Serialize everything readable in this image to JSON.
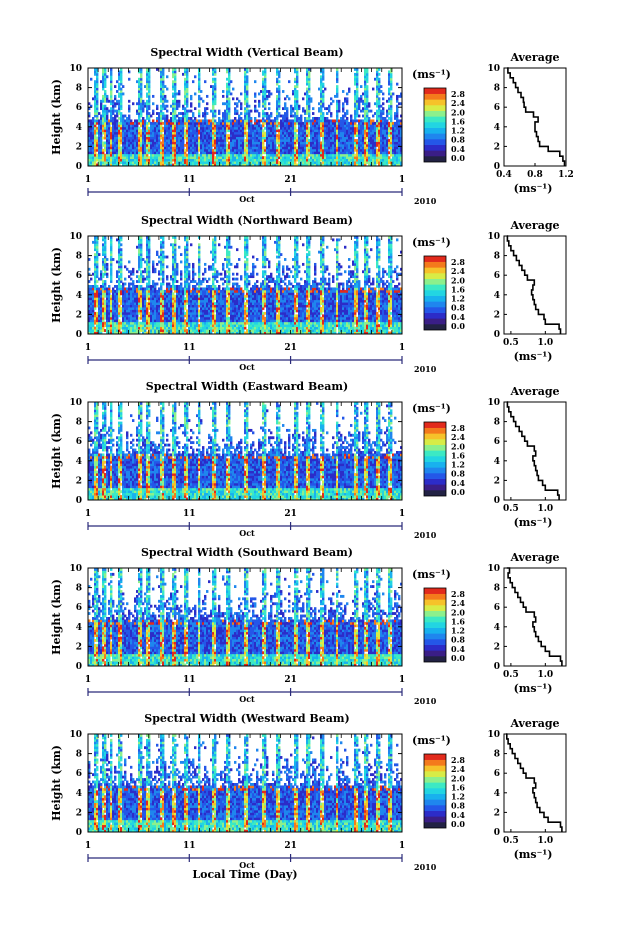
{
  "figure": {
    "xlabel": "Local Time (Day)",
    "avg_title": "Average",
    "unit_label": "(ms⁻¹)",
    "ylabel": "Height (km)",
    "month_label": "Oct",
    "year_label": "2010",
    "colors": {
      "scale": [
        "#3a1e86",
        "#2c2cc8",
        "#2457e8",
        "#1f86ee",
        "#18b1ee",
        "#22d5e2",
        "#3ce9c4",
        "#8cf08c",
        "#d8ec46",
        "#f6c22a",
        "#f47a1c",
        "#e22a1c"
      ],
      "axis": "#000000",
      "time_axis": "#2b2b7a"
    }
  },
  "chart_data": [
    {
      "type": "heatmap",
      "title": "Spectral Width (Vertical Beam)",
      "xlabel": "Local Time (Day)",
      "ylabel": "Height (km)",
      "xticks": [
        "1",
        "11",
        "21",
        "1"
      ],
      "yticks": [
        "0",
        "2",
        "4",
        "6",
        "8",
        "10"
      ],
      "ylim": [
        0,
        10
      ],
      "colorbar": {
        "label": "(ms⁻¹)",
        "ticks": [
          "2.8",
          "2.4",
          "2.0",
          "1.6",
          "1.2",
          "0.8",
          "0.4",
          "0.0"
        ],
        "range": [
          0.0,
          3.0
        ]
      },
      "average_profile": {
        "title": "Average",
        "xlabel": "(ms⁻¹)",
        "xticks": [
          "0.4",
          "0.8",
          "1.2"
        ],
        "xlim": [
          0.4,
          1.2
        ],
        "yticks": [
          "0",
          "2",
          "4",
          "6",
          "8",
          "10"
        ],
        "height_km": [
          0,
          0.5,
          1,
          1.5,
          2,
          2.5,
          3,
          3.5,
          4,
          4.5,
          5,
          5.5,
          6,
          6.5,
          7,
          7.5,
          8,
          8.5,
          9,
          9.5,
          10
        ],
        "width": [
          1.18,
          1.16,
          1.12,
          0.97,
          0.86,
          0.84,
          0.82,
          0.8,
          0.8,
          0.84,
          0.78,
          0.68,
          0.66,
          0.65,
          0.62,
          0.58,
          0.55,
          0.52,
          0.48,
          0.45,
          0.44
        ]
      }
    },
    {
      "type": "heatmap",
      "title": "Spectral Width (Northward Beam)",
      "xlabel": "Local Time (Day)",
      "ylabel": "Height (km)",
      "xticks": [
        "1",
        "11",
        "21",
        "1"
      ],
      "yticks": [
        "0",
        "2",
        "4",
        "6",
        "8",
        "10"
      ],
      "ylim": [
        0,
        10
      ],
      "colorbar": {
        "label": "(ms⁻¹)",
        "ticks": [
          "2.8",
          "2.4",
          "2.0",
          "1.6",
          "1.2",
          "0.8",
          "0.4",
          "0.0"
        ],
        "range": [
          0.0,
          3.0
        ]
      },
      "average_profile": {
        "title": "Average",
        "xlabel": "(ms⁻¹)",
        "xticks": [
          "0.5",
          "1.0"
        ],
        "xlim": [
          0.4,
          1.3
        ],
        "yticks": [
          "0",
          "2",
          "4",
          "6",
          "8",
          "10"
        ],
        "height_km": [
          0,
          0.5,
          1,
          1.5,
          2,
          2.5,
          3,
          3.5,
          4,
          4.5,
          5,
          5.5,
          6,
          6.5,
          7,
          7.5,
          8,
          8.5,
          9,
          9.5,
          10
        ],
        "width": [
          1.22,
          1.2,
          1.0,
          0.98,
          0.9,
          0.86,
          0.84,
          0.82,
          0.8,
          0.82,
          0.84,
          0.74,
          0.7,
          0.66,
          0.62,
          0.58,
          0.54,
          0.5,
          0.47,
          0.45,
          0.44
        ]
      }
    },
    {
      "type": "heatmap",
      "title": "Spectral Width (Eastward Beam)",
      "xlabel": "Local Time (Day)",
      "ylabel": "Height (km)",
      "xticks": [
        "1",
        "11",
        "21",
        "1"
      ],
      "yticks": [
        "0",
        "2",
        "4",
        "6",
        "8",
        "10"
      ],
      "ylim": [
        0,
        10
      ],
      "colorbar": {
        "label": "(ms⁻¹)",
        "ticks": [
          "2.8",
          "2.4",
          "2.0",
          "1.6",
          "1.2",
          "0.8",
          "0.4",
          "0.0"
        ],
        "range": [
          0.0,
          3.0
        ]
      },
      "average_profile": {
        "title": "Average",
        "xlabel": "(ms⁻¹)",
        "xticks": [
          "0.5",
          "1.0"
        ],
        "xlim": [
          0.4,
          1.3
        ],
        "yticks": [
          "0",
          "2",
          "4",
          "6",
          "8",
          "10"
        ],
        "height_km": [
          0,
          0.5,
          1,
          1.5,
          2,
          2.5,
          3,
          3.5,
          4,
          4.5,
          5,
          5.5,
          6,
          6.5,
          7,
          7.5,
          8,
          8.5,
          9,
          9.5,
          10
        ],
        "width": [
          1.2,
          1.18,
          1.0,
          0.96,
          0.9,
          0.88,
          0.86,
          0.84,
          0.82,
          0.86,
          0.84,
          0.74,
          0.7,
          0.66,
          0.62,
          0.57,
          0.54,
          0.5,
          0.47,
          0.45,
          0.44
        ]
      }
    },
    {
      "type": "heatmap",
      "title": "Spectral Width (Southward Beam)",
      "xlabel": "Local Time (Day)",
      "ylabel": "Height (km)",
      "xticks": [
        "1",
        "11",
        "21",
        "1"
      ],
      "yticks": [
        "0",
        "2",
        "4",
        "6",
        "8",
        "10"
      ],
      "ylim": [
        0,
        10
      ],
      "colorbar": {
        "label": "(ms⁻¹)",
        "ticks": [
          "2.8",
          "2.4",
          "2.0",
          "1.6",
          "1.2",
          "0.8",
          "0.4",
          "0.0"
        ],
        "range": [
          0.0,
          3.0
        ]
      },
      "average_profile": {
        "title": "Average",
        "xlabel": "(ms⁻¹)",
        "xticks": [
          "0.5",
          "1.0"
        ],
        "xlim": [
          0.4,
          1.3
        ],
        "yticks": [
          "0",
          "2",
          "4",
          "6",
          "8",
          "10"
        ],
        "height_km": [
          0,
          0.5,
          1,
          1.5,
          2,
          2.5,
          3,
          3.5,
          4,
          4.5,
          5,
          5.5,
          6,
          6.5,
          7,
          7.5,
          8,
          8.5,
          9,
          9.5,
          10
        ],
        "width": [
          1.24,
          1.22,
          1.06,
          1.0,
          0.94,
          0.9,
          0.86,
          0.84,
          0.82,
          0.86,
          0.84,
          0.72,
          0.68,
          0.64,
          0.6,
          0.56,
          0.52,
          0.49,
          0.46,
          0.48,
          0.44
        ]
      }
    },
    {
      "type": "heatmap",
      "title": "Spectral Width (Westward Beam)",
      "xlabel": "Local Time (Day)",
      "ylabel": "Height (km)",
      "xticks": [
        "1",
        "11",
        "21",
        "1"
      ],
      "yticks": [
        "0",
        "2",
        "4",
        "6",
        "8",
        "10"
      ],
      "ylim": [
        0,
        10
      ],
      "colorbar": {
        "label": "(ms⁻¹)",
        "ticks": [
          "2.8",
          "2.4",
          "2.0",
          "1.6",
          "1.2",
          "0.8",
          "0.4",
          "0.0"
        ],
        "range": [
          0.0,
          3.0
        ]
      },
      "average_profile": {
        "title": "Average",
        "xlabel": "(ms⁻¹)",
        "xticks": [
          "0.5",
          "1.0"
        ],
        "xlim": [
          0.4,
          1.3
        ],
        "yticks": [
          "0",
          "2",
          "4",
          "6",
          "8",
          "10"
        ],
        "height_km": [
          0,
          0.5,
          1,
          1.5,
          2,
          2.5,
          3,
          3.5,
          4,
          4.5,
          5,
          5.5,
          6,
          6.5,
          7,
          7.5,
          8,
          8.5,
          9,
          9.5,
          10
        ],
        "width": [
          1.24,
          1.22,
          1.04,
          0.98,
          0.92,
          0.88,
          0.86,
          0.84,
          0.82,
          0.86,
          0.84,
          0.72,
          0.68,
          0.64,
          0.6,
          0.56,
          0.52,
          0.49,
          0.46,
          0.44,
          0.45
        ]
      }
    }
  ]
}
